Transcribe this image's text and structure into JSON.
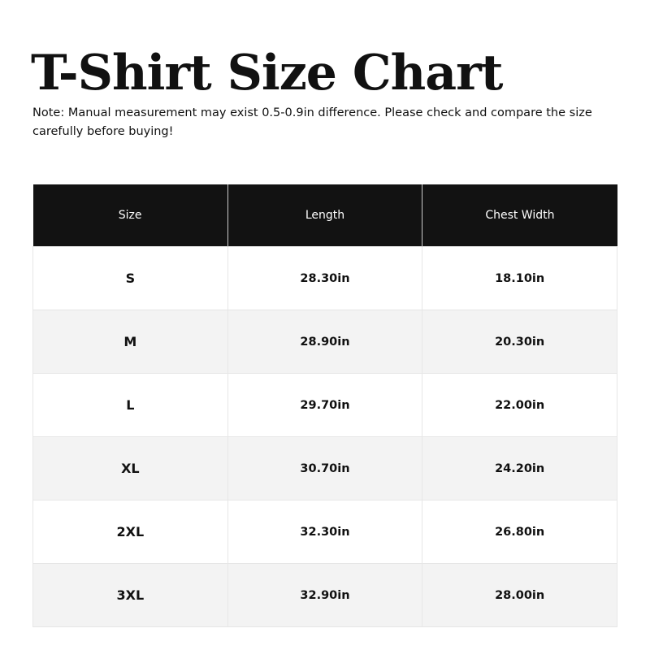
{
  "title": "T-Shirt Size Chart",
  "note": "Note: Manual measurement may exist 0.5-0.9in difference. Please check and compare the size carefully before buying!",
  "table": {
    "headers": [
      "Size",
      "Length",
      "Chest Width"
    ],
    "rows": [
      [
        "S",
        "28.30in",
        "18.10in"
      ],
      [
        "M",
        "28.90in",
        "20.30in"
      ],
      [
        "L",
        "29.70in",
        "22.00in"
      ],
      [
        "XL",
        "30.70in",
        "24.20in"
      ],
      [
        "2XL",
        "32.30in",
        "26.80in"
      ],
      [
        "3XL",
        "32.90in",
        "28.00in"
      ]
    ]
  }
}
